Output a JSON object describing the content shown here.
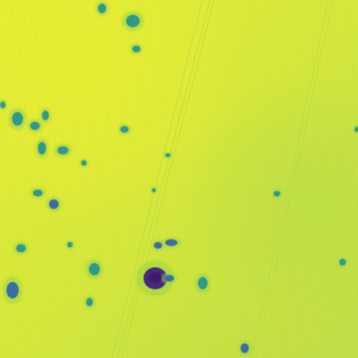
{
  "image": {
    "kind": "false-color aerial crop field",
    "colormap": [
      "#440154",
      "#3b528b",
      "#21918c",
      "#5ec962",
      "#fde725"
    ],
    "colors": {
      "field_base": "#cde236",
      "field_bright": "#e6ed2c",
      "field_green": "#9ed445",
      "patch_teal": "#2d9b8a",
      "patch_blue": "#3a6ea0",
      "patch_purple": "#4a2a7a"
    }
  }
}
